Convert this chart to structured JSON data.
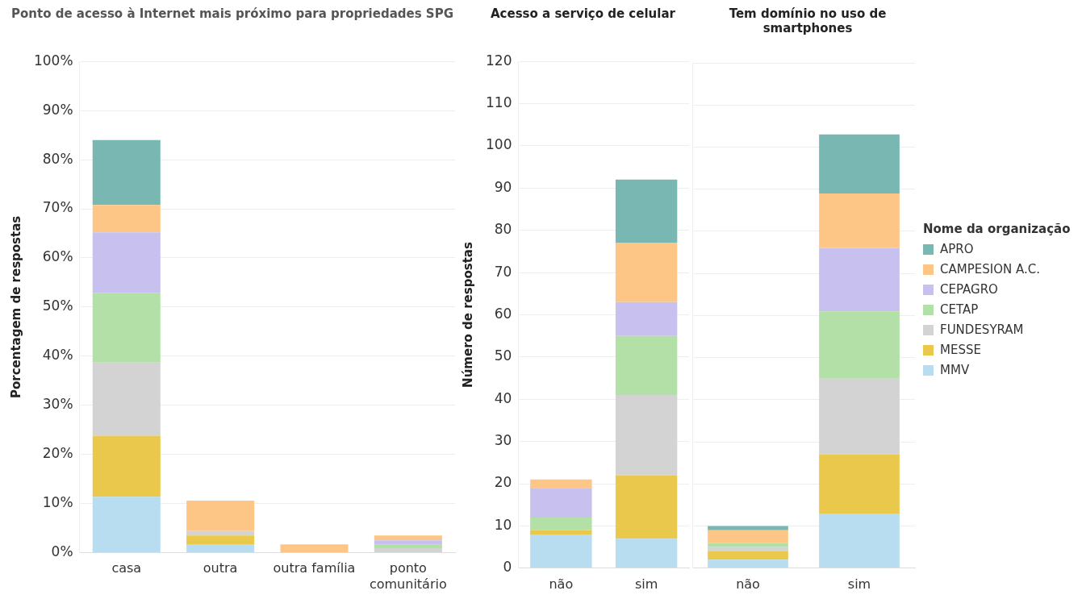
{
  "chart_data": [
    {
      "type": "bar",
      "title": "Ponto de acesso à Internet mais próximo para propriedades SPG",
      "ylabel": "Porcentagem de respostas",
      "categories": [
        "casa",
        "outra",
        "outra família",
        "ponto comunitário"
      ],
      "stacked": true,
      "grid": "y",
      "legend": false,
      "ylim": [
        0,
        100
      ],
      "yticks": [
        {
          "value": 0,
          "label": "0%"
        },
        {
          "value": 10,
          "label": "10%"
        },
        {
          "value": 20,
          "label": "20%"
        },
        {
          "value": 30,
          "label": "30%"
        },
        {
          "value": 40,
          "label": "40%"
        },
        {
          "value": 50,
          "label": "50%"
        },
        {
          "value": 60,
          "label": "60%"
        },
        {
          "value": 70,
          "label": "70%"
        },
        {
          "value": 80,
          "label": "80%"
        },
        {
          "value": 90,
          "label": "90%"
        },
        {
          "value": 100,
          "label": "100%"
        }
      ],
      "series": [
        {
          "color": "#b8ddf0",
          "values": [
            11.4,
            1.6,
            null,
            null
          ]
        },
        {
          "color": "#eac84b",
          "values": [
            12.4,
            1.9,
            null,
            null
          ]
        },
        {
          "color": "#d3d3d3",
          "values": [
            14.9,
            0.9,
            null,
            0.9
          ]
        },
        {
          "color": "#b3e0a6",
          "values": [
            14.2,
            null,
            null,
            0.7
          ]
        },
        {
          "color": "#c8c1ef",
          "values": [
            12.3,
            null,
            null,
            0.9
          ]
        },
        {
          "color": "#fec686",
          "values": [
            5.6,
            6.2,
            1.7,
            1.0
          ]
        },
        {
          "color": "#79b7b2",
          "values": [
            13.2,
            null,
            null,
            null
          ]
        }
      ]
    },
    {
      "type": "bar",
      "title": "Acesso a serviço de celular",
      "ylabel": "Número de respostas",
      "categories": [
        "não",
        "sim"
      ],
      "stacked": true,
      "grid": "y",
      "legend": false,
      "ylim": [
        0,
        120
      ],
      "yticks": [
        0,
        10,
        20,
        30,
        40,
        50,
        60,
        70,
        80,
        90,
        100,
        110,
        120
      ],
      "series": [
        {
          "color": "#b8ddf0",
          "values": [
            8,
            7
          ]
        },
        {
          "color": "#eac84b",
          "values": [
            1,
            15
          ]
        },
        {
          "color": "#d3d3d3",
          "values": [
            null,
            19
          ]
        },
        {
          "color": "#b3e0a6",
          "values": [
            3,
            14
          ]
        },
        {
          "color": "#c8c1ef",
          "values": [
            7,
            8
          ]
        },
        {
          "color": "#fec686",
          "values": [
            2,
            14
          ]
        },
        {
          "color": "#79b7b2",
          "values": [
            null,
            15
          ]
        }
      ]
    },
    {
      "type": "bar",
      "title": "Tem domínio no uso de smartphones",
      "categories": [
        "não",
        "sim"
      ],
      "stacked": true,
      "grid": "y",
      "legend": "right",
      "legend_title": "Nome da organização",
      "tick_labels": "x",
      "ylim": [
        0,
        120
      ],
      "yticks": [
        0,
        10,
        20,
        30,
        40,
        50,
        60,
        70,
        80,
        90,
        100,
        110,
        120
      ],
      "series": [
        {
          "name": "MMV",
          "color": "#b8ddf0",
          "values": [
            2,
            13
          ]
        },
        {
          "name": "MESSE",
          "color": "#eac84b",
          "values": [
            2,
            14
          ]
        },
        {
          "name": "FUNDESYRAM",
          "color": "#d3d3d3",
          "values": [
            1,
            18
          ]
        },
        {
          "name": "CETAP",
          "color": "#b3e0a6",
          "values": [
            1,
            16
          ]
        },
        {
          "name": "CEPAGRO",
          "color": "#c8c1ef",
          "values": [
            null,
            15
          ]
        },
        {
          "name": "CAMPESION A.C.",
          "color": "#fec686",
          "values": [
            3,
            13
          ]
        },
        {
          "name": "APRO",
          "color": "#79b7b2",
          "values": [
            1,
            14
          ]
        }
      ]
    }
  ]
}
